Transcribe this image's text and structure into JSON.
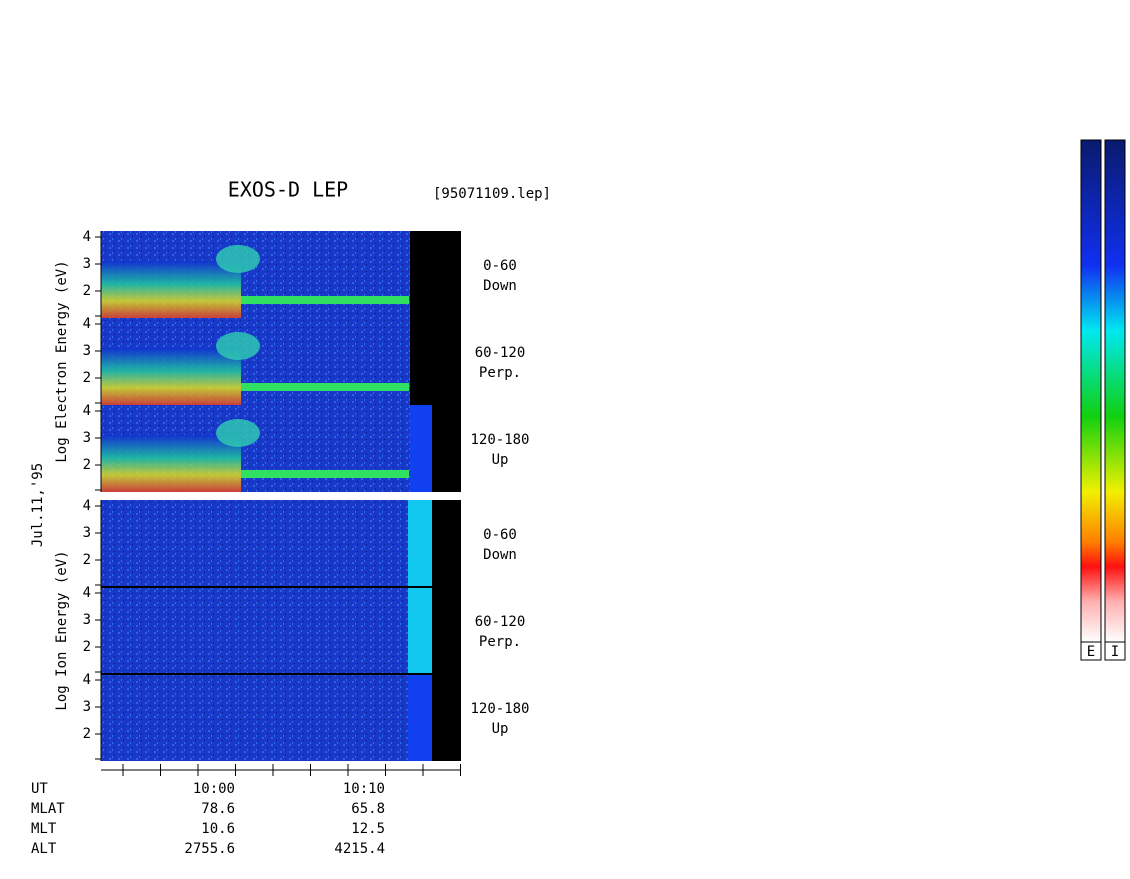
{
  "title": "EXOS-D LEP",
  "file_name": "[95071109.lep]",
  "date": "Jul.11,'95",
  "groups": [
    {
      "ylabel": "Log Electron Energy (eV)",
      "panels": [
        {
          "yticks": [
            "4",
            "3",
            "2"
          ],
          "range": "0-60",
          "direction": "Down"
        },
        {
          "yticks": [
            "4",
            "3",
            "2"
          ],
          "range": "60-120",
          "direction": "Perp."
        },
        {
          "yticks": [
            "4",
            "3",
            "2"
          ],
          "range": "120-180",
          "direction": "Up"
        }
      ]
    },
    {
      "ylabel": "Log Ion Energy (eV)",
      "panels": [
        {
          "yticks": [
            "4",
            "3",
            "2"
          ],
          "range": "0-60",
          "direction": "Down"
        },
        {
          "yticks": [
            "4",
            "3",
            "2"
          ],
          "range": "60-120",
          "direction": "Perp."
        },
        {
          "yticks": [
            "4",
            "3",
            "2"
          ],
          "range": "120-180",
          "direction": "Up"
        }
      ]
    }
  ],
  "footer": {
    "rows": [
      {
        "label": "UT",
        "values": [
          "10:00",
          "10:10"
        ]
      },
      {
        "label": "MLAT",
        "values": [
          "78.6",
          "65.8"
        ]
      },
      {
        "label": "MLT",
        "values": [
          "10.6",
          "12.5"
        ]
      },
      {
        "label": "ALT",
        "values": [
          "2755.6",
          "4215.4"
        ]
      }
    ]
  },
  "colorbars": [
    "E",
    "I"
  ]
}
